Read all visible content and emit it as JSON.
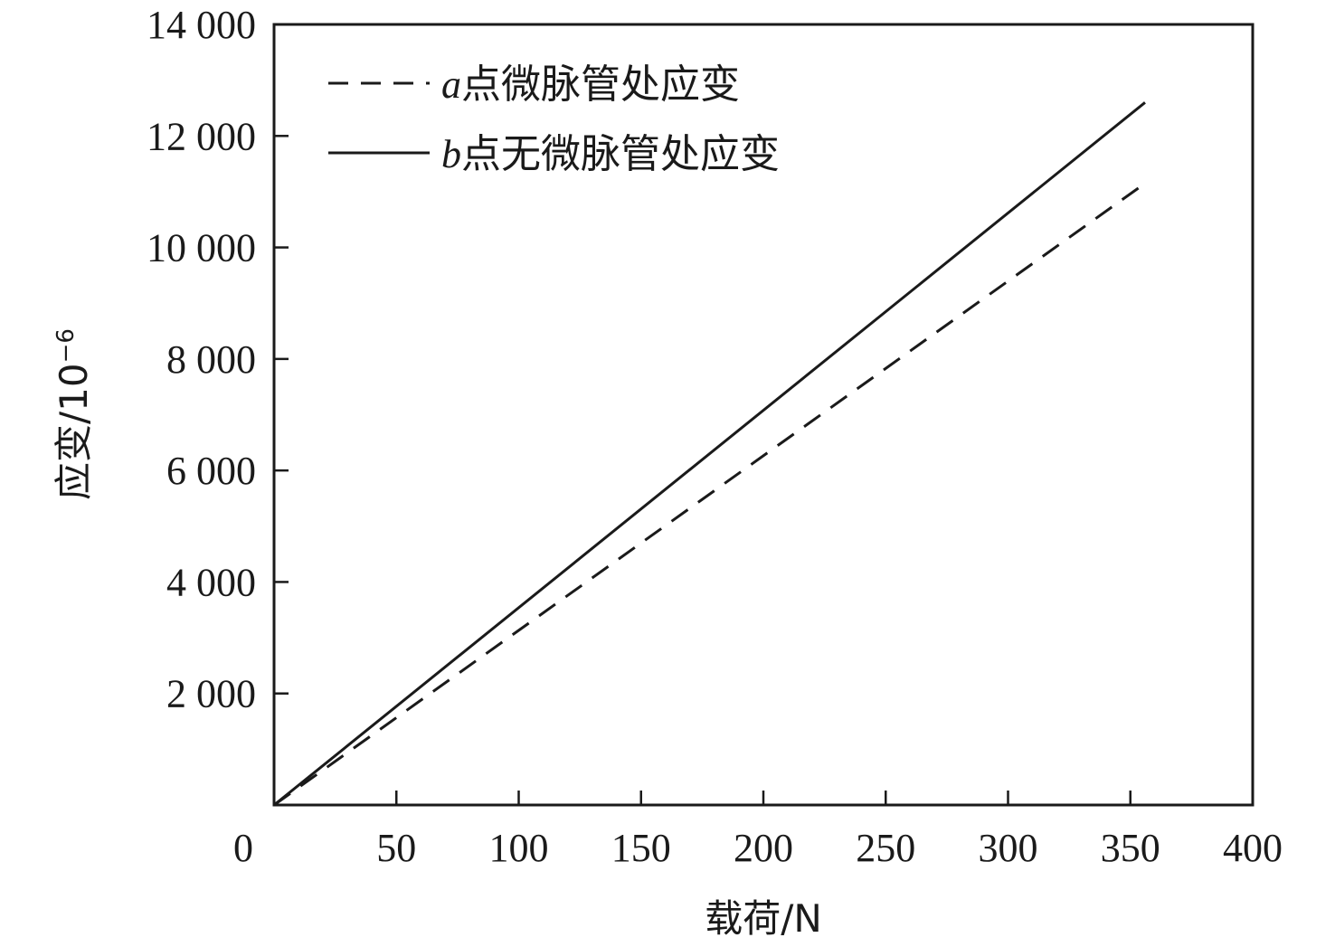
{
  "chart_data": {
    "type": "line",
    "xlabel": "载荷/N",
    "ylabel_main": "应变/10",
    "ylabel_exp": "−6",
    "xlim": [
      0,
      400
    ],
    "ylim": [
      0,
      14000
    ],
    "xticks": [
      0,
      50,
      100,
      150,
      200,
      250,
      300,
      350,
      400
    ],
    "xtick_labels": [
      "0",
      "50",
      "100",
      "150",
      "200",
      "250",
      "300",
      "350",
      "400"
    ],
    "yticks": [
      2000,
      4000,
      6000,
      8000,
      10000,
      12000,
      14000
    ],
    "ytick_labels": [
      "2 000",
      "4 000",
      "6 000",
      "8 000",
      "10 000",
      "12 000",
      "14 000"
    ],
    "grid": false,
    "legend_position": "top-left",
    "series": [
      {
        "name": "a点微脉管处应变",
        "legend_prefix": "a",
        "legend_rest": "点微脉管处应变",
        "line_style": "dashed",
        "color": "#1a1a1a",
        "x": [
          0,
          356
        ],
        "y": [
          0,
          11150
        ]
      },
      {
        "name": "b点无微脉管处应变",
        "legend_prefix": "b",
        "legend_rest": "点无微脉管处应变",
        "line_style": "solid",
        "color": "#1a1a1a",
        "x": [
          0,
          356
        ],
        "y": [
          0,
          12600
        ]
      }
    ]
  }
}
